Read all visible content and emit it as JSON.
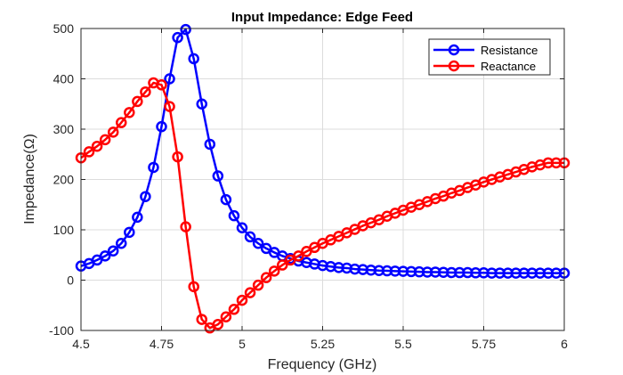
{
  "chart_data": {
    "type": "line",
    "title": "Input Impedance: Edge Feed",
    "xlabel": "Frequency (GHz)",
    "ylabel": "Impedance(Ω)",
    "xlim": [
      4.5,
      6
    ],
    "ylim": [
      -100,
      500
    ],
    "xticks": [
      4.5,
      4.75,
      5,
      5.25,
      5.5,
      5.75,
      6
    ],
    "xtick_labels": [
      "4.5",
      "4.75",
      "5",
      "5.25",
      "5.5",
      "5.75",
      "6"
    ],
    "yticks": [
      -100,
      0,
      100,
      200,
      300,
      400,
      500
    ],
    "ytick_labels": [
      "-100",
      "0",
      "100",
      "200",
      "300",
      "400",
      "500"
    ],
    "grid": true,
    "legend_position": "top-right",
    "x": [
      4.5,
      4.525,
      4.55,
      4.575,
      4.6,
      4.625,
      4.65,
      4.675,
      4.7,
      4.725,
      4.75,
      4.775,
      4.8,
      4.825,
      4.85,
      4.875,
      4.9,
      4.925,
      4.95,
      4.975,
      5.0,
      5.025,
      5.05,
      5.075,
      5.1,
      5.125,
      5.15,
      5.175,
      5.2,
      5.225,
      5.25,
      5.275,
      5.3,
      5.325,
      5.35,
      5.375,
      5.4,
      5.425,
      5.45,
      5.475,
      5.5,
      5.525,
      5.55,
      5.575,
      5.6,
      5.625,
      5.65,
      5.675,
      5.7,
      5.725,
      5.75,
      5.775,
      5.8,
      5.825,
      5.85,
      5.875,
      5.9,
      5.925,
      5.95,
      5.975,
      6.0
    ],
    "series": [
      {
        "name": "Resistance",
        "color": "#0000ff",
        "values": [
          28,
          33,
          40,
          48,
          58,
          73,
          95,
          125,
          166,
          224,
          305,
          400,
          482,
          498,
          440,
          350,
          270,
          207,
          160,
          128,
          104,
          86,
          73,
          63,
          55,
          48,
          43,
          38,
          35,
          32,
          29,
          27,
          25,
          24,
          22,
          21,
          20,
          19,
          18.5,
          18,
          17.5,
          17,
          16.5,
          16,
          16,
          15.5,
          15,
          15,
          15,
          14.5,
          14.5,
          14,
          14,
          14,
          14,
          14,
          14,
          14,
          14,
          14,
          14
        ]
      },
      {
        "name": "Reactance",
        "color": "#ff0000",
        "values": [
          243,
          255,
          266,
          279,
          294,
          313,
          333,
          355,
          374,
          392,
          388,
          345,
          245,
          106,
          -13,
          -78,
          -95,
          -88,
          -73,
          -58,
          -40,
          -25,
          -10,
          5,
          18,
          30,
          40,
          48,
          57,
          65,
          73,
          80,
          87,
          94,
          101,
          108,
          114,
          120,
          127,
          133,
          139,
          145,
          150,
          156,
          162,
          167,
          173,
          178,
          184,
          189,
          195,
          200,
          205,
          210,
          215,
          220,
          225,
          229,
          233,
          233,
          233
        ]
      }
    ]
  }
}
